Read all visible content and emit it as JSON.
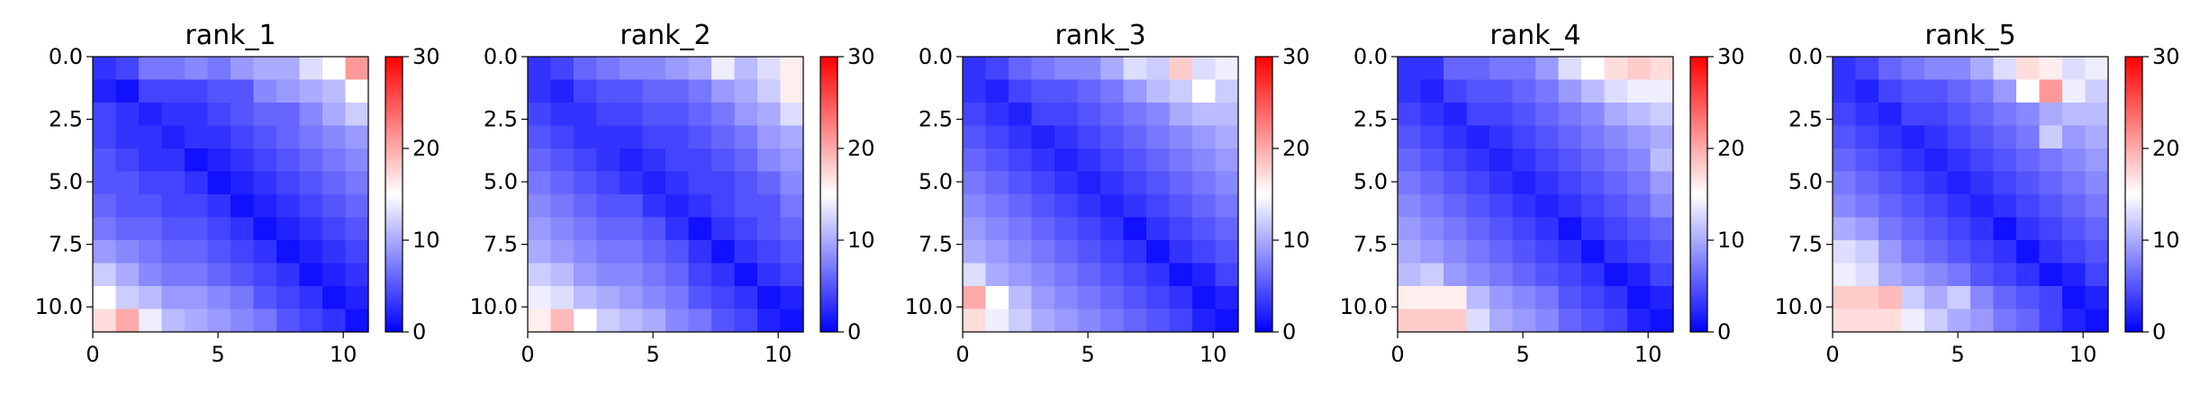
{
  "figure": {
    "panel_titles": [
      "rank_1",
      "rank_2",
      "rank_3",
      "rank_4",
      "rank_5"
    ]
  },
  "colormap": {
    "name": "bwr",
    "stops": [
      "#0000ff",
      "#ffffff",
      "#ff0000"
    ],
    "vmin": 0,
    "vmax": 30
  },
  "chart_data": [
    {
      "type": "heatmap",
      "title": "rank_1",
      "x_ticks": [
        "0",
        "5",
        "10"
      ],
      "y_ticks": [
        "0.0",
        "2.5",
        "5.0",
        "7.5",
        "10.0"
      ],
      "colorbar_ticks": [
        "0",
        "10",
        "20",
        "30"
      ],
      "xlim": [
        0,
        11
      ],
      "ylim": [
        11,
        0
      ],
      "clim": [
        0,
        30
      ],
      "grid": false,
      "z": [
        [
          3,
          4,
          7,
          7,
          8,
          7,
          9,
          10,
          10,
          13,
          15,
          21
        ],
        [
          2,
          1,
          4,
          4,
          4,
          5,
          5,
          8,
          9,
          10,
          11,
          15
        ],
        [
          4,
          3,
          2,
          3,
          3,
          4,
          5,
          6,
          6,
          8,
          10,
          12
        ],
        [
          4,
          3,
          3,
          2,
          3,
          3,
          4,
          5,
          6,
          7,
          8,
          9
        ],
        [
          5,
          4,
          3,
          3,
          1,
          2,
          3,
          4,
          5,
          6,
          7,
          8
        ],
        [
          5,
          5,
          4,
          4,
          3,
          1,
          2,
          3,
          4,
          5,
          6,
          7
        ],
        [
          6,
          5,
          5,
          4,
          4,
          3,
          1,
          2,
          3,
          4,
          5,
          6
        ],
        [
          7,
          6,
          6,
          5,
          5,
          4,
          3,
          1,
          2,
          3,
          4,
          5
        ],
        [
          9,
          8,
          7,
          6,
          6,
          5,
          4,
          3,
          1,
          2,
          3,
          4
        ],
        [
          12,
          10,
          8,
          7,
          7,
          6,
          5,
          4,
          3,
          1,
          2,
          3
        ],
        [
          15,
          12,
          11,
          9,
          9,
          8,
          7,
          5,
          4,
          3,
          1,
          2
        ],
        [
          17,
          20,
          14,
          11,
          10,
          9,
          8,
          7,
          5,
          4,
          3,
          1
        ]
      ]
    },
    {
      "type": "heatmap",
      "title": "rank_2",
      "x_ticks": [
        "0",
        "5",
        "10"
      ],
      "y_ticks": [
        "0.0",
        "2.5",
        "5.0",
        "7.5",
        "10.0"
      ],
      "colorbar_ticks": [
        "0",
        "10",
        "20",
        "30"
      ],
      "xlim": [
        0,
        11
      ],
      "ylim": [
        11,
        0
      ],
      "clim": [
        0,
        30
      ],
      "grid": false,
      "z": [
        [
          3,
          4,
          6,
          7,
          8,
          8,
          9,
          10,
          14,
          11,
          13,
          16
        ],
        [
          3,
          2,
          4,
          5,
          5,
          6,
          6,
          7,
          9,
          10,
          12,
          16
        ],
        [
          4,
          3,
          3,
          4,
          4,
          5,
          5,
          6,
          7,
          9,
          10,
          13
        ],
        [
          5,
          4,
          3,
          3,
          3,
          4,
          4,
          5,
          6,
          7,
          9,
          10
        ],
        [
          6,
          5,
          4,
          3,
          2,
          3,
          4,
          4,
          5,
          6,
          8,
          9
        ],
        [
          7,
          6,
          5,
          4,
          3,
          2,
          3,
          4,
          4,
          5,
          6,
          8
        ],
        [
          8,
          7,
          6,
          5,
          5,
          3,
          2,
          3,
          4,
          5,
          5,
          7
        ],
        [
          9,
          8,
          7,
          6,
          6,
          5,
          3,
          1,
          3,
          4,
          5,
          6
        ],
        [
          10,
          9,
          8,
          7,
          7,
          6,
          5,
          3,
          1,
          3,
          4,
          5
        ],
        [
          12,
          11,
          9,
          8,
          8,
          7,
          6,
          4,
          3,
          1,
          3,
          4
        ],
        [
          14,
          13,
          11,
          10,
          9,
          8,
          7,
          5,
          4,
          3,
          1,
          2
        ],
        [
          16,
          19,
          15,
          12,
          11,
          10,
          8,
          7,
          5,
          4,
          2,
          1
        ]
      ]
    },
    {
      "type": "heatmap",
      "title": "rank_3",
      "x_ticks": [
        "0",
        "5",
        "10"
      ],
      "y_ticks": [
        "0.0",
        "2.5",
        "5.0",
        "7.5",
        "10.0"
      ],
      "colorbar_ticks": [
        "0",
        "10",
        "20",
        "30"
      ],
      "xlim": [
        0,
        11
      ],
      "ylim": [
        11,
        0
      ],
      "clim": [
        0,
        30
      ],
      "grid": false,
      "z": [
        [
          3,
          4,
          6,
          7,
          8,
          8,
          10,
          13,
          12,
          18,
          13,
          14
        ],
        [
          3,
          2,
          4,
          5,
          5,
          6,
          7,
          9,
          11,
          12,
          15,
          12
        ],
        [
          4,
          3,
          2,
          4,
          4,
          5,
          6,
          7,
          8,
          10,
          11,
          11
        ],
        [
          5,
          4,
          3,
          2,
          3,
          4,
          5,
          6,
          7,
          8,
          9,
          10
        ],
        [
          6,
          5,
          4,
          3,
          2,
          3,
          4,
          5,
          6,
          7,
          8,
          9
        ],
        [
          7,
          6,
          5,
          4,
          3,
          2,
          3,
          4,
          5,
          6,
          7,
          8
        ],
        [
          8,
          7,
          6,
          5,
          4,
          3,
          2,
          3,
          4,
          5,
          6,
          7
        ],
        [
          9,
          8,
          7,
          6,
          5,
          4,
          3,
          1,
          3,
          4,
          5,
          6
        ],
        [
          10,
          9,
          8,
          7,
          6,
          5,
          4,
          3,
          1,
          3,
          4,
          5
        ],
        [
          13,
          10,
          9,
          8,
          7,
          6,
          5,
          4,
          3,
          1,
          2,
          4
        ],
        [
          20,
          15,
          11,
          9,
          8,
          7,
          6,
          5,
          4,
          3,
          1,
          2
        ],
        [
          17,
          14,
          12,
          10,
          9,
          8,
          7,
          6,
          5,
          4,
          2,
          1
        ]
      ]
    },
    {
      "type": "heatmap",
      "title": "rank_4",
      "x_ticks": [
        "0",
        "5",
        "10"
      ],
      "y_ticks": [
        "0.0",
        "2.5",
        "5.0",
        "7.5",
        "10.0"
      ],
      "colorbar_ticks": [
        "0",
        "10",
        "20",
        "30"
      ],
      "xlim": [
        0,
        11
      ],
      "ylim": [
        11,
        0
      ],
      "clim": [
        0,
        30
      ],
      "grid": false,
      "z": [
        [
          3,
          3,
          6,
          6,
          7,
          7,
          9,
          13,
          15,
          17,
          18,
          17
        ],
        [
          3,
          2,
          4,
          5,
          5,
          6,
          7,
          9,
          11,
          13,
          14,
          14
        ],
        [
          4,
          3,
          2,
          4,
          4,
          5,
          6,
          7,
          8,
          10,
          11,
          12
        ],
        [
          5,
          4,
          3,
          2,
          3,
          4,
          5,
          6,
          7,
          8,
          9,
          10
        ],
        [
          6,
          5,
          4,
          3,
          2,
          3,
          4,
          5,
          6,
          7,
          8,
          11
        ],
        [
          7,
          6,
          5,
          4,
          3,
          2,
          3,
          4,
          5,
          6,
          7,
          9
        ],
        [
          8,
          7,
          6,
          5,
          4,
          3,
          2,
          3,
          4,
          5,
          6,
          8
        ],
        [
          9,
          8,
          7,
          6,
          5,
          4,
          3,
          1,
          3,
          4,
          5,
          6
        ],
        [
          10,
          9,
          8,
          7,
          6,
          5,
          4,
          3,
          1,
          3,
          4,
          5
        ],
        [
          11,
          12,
          9,
          8,
          7,
          6,
          5,
          4,
          3,
          1,
          2,
          4
        ],
        [
          16,
          16,
          16,
          11,
          9,
          8,
          7,
          5,
          4,
          3,
          1,
          2
        ],
        [
          18,
          18,
          18,
          13,
          10,
          9,
          8,
          6,
          5,
          4,
          2,
          1
        ]
      ]
    },
    {
      "type": "heatmap",
      "title": "rank_5",
      "x_ticks": [
        "0",
        "5",
        "10"
      ],
      "y_ticks": [
        "0.0",
        "2.5",
        "5.0",
        "7.5",
        "10.0"
      ],
      "colorbar_ticks": [
        "0",
        "10",
        "20",
        "30"
      ],
      "xlim": [
        0,
        11
      ],
      "ylim": [
        11,
        0
      ],
      "clim": [
        0,
        30
      ],
      "grid": false,
      "z": [
        [
          3,
          4,
          6,
          7,
          8,
          8,
          10,
          13,
          17,
          16,
          13,
          14
        ],
        [
          3,
          2,
          4,
          5,
          5,
          6,
          7,
          9,
          15,
          21,
          14,
          12
        ],
        [
          4,
          3,
          2,
          4,
          4,
          5,
          6,
          7,
          8,
          10,
          11,
          11
        ],
        [
          5,
          4,
          3,
          2,
          3,
          4,
          5,
          6,
          7,
          12,
          9,
          10
        ],
        [
          6,
          5,
          4,
          3,
          2,
          3,
          4,
          5,
          6,
          7,
          8,
          9
        ],
        [
          7,
          6,
          5,
          4,
          3,
          2,
          3,
          4,
          5,
          6,
          7,
          8
        ],
        [
          8,
          7,
          6,
          5,
          4,
          3,
          2,
          3,
          4,
          5,
          6,
          7
        ],
        [
          10,
          9,
          7,
          6,
          5,
          4,
          3,
          1,
          3,
          4,
          5,
          6
        ],
        [
          13,
          12,
          9,
          7,
          6,
          5,
          4,
          3,
          1,
          3,
          4,
          5
        ],
        [
          14,
          13,
          10,
          9,
          8,
          7,
          5,
          4,
          3,
          1,
          2,
          4
        ],
        [
          18,
          18,
          19,
          12,
          10,
          12,
          8,
          6,
          5,
          4,
          1,
          2
        ],
        [
          17,
          17,
          17,
          14,
          12,
          10,
          9,
          7,
          6,
          4,
          2,
          1
        ]
      ]
    }
  ]
}
